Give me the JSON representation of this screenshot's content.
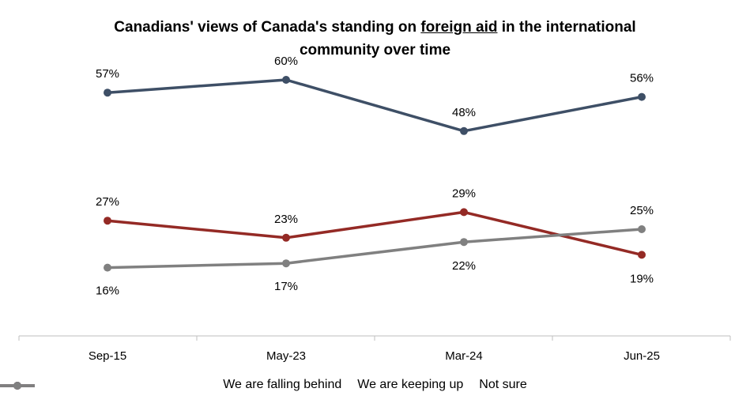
{
  "chart_data": {
    "type": "line",
    "title_parts": [
      "Canadians' views of Canada's  standing on ",
      "foreign aid",
      " in the international",
      "community over time"
    ],
    "categories": [
      "Sep-15",
      "May-23",
      "Mar-24",
      "Jun-25"
    ],
    "series": [
      {
        "name": "We are falling behind",
        "color": "#942a25",
        "values": [
          27,
          23,
          29,
          19
        ],
        "labels": [
          "27%",
          "23%",
          "29%",
          "19%"
        ]
      },
      {
        "name": "We are keeping up",
        "color": "#3e4f66",
        "values": [
          57,
          60,
          48,
          56
        ],
        "labels": [
          "57%",
          "60%",
          "48%",
          "56%"
        ]
      },
      {
        "name": "Not sure",
        "color": "#808080",
        "values": [
          16,
          17,
          22,
          25
        ],
        "labels": [
          "16%",
          "17%",
          "22%",
          "25%"
        ]
      }
    ],
    "ylim": [
      0,
      70
    ],
    "grid": false,
    "legend_position": "bottom"
  }
}
